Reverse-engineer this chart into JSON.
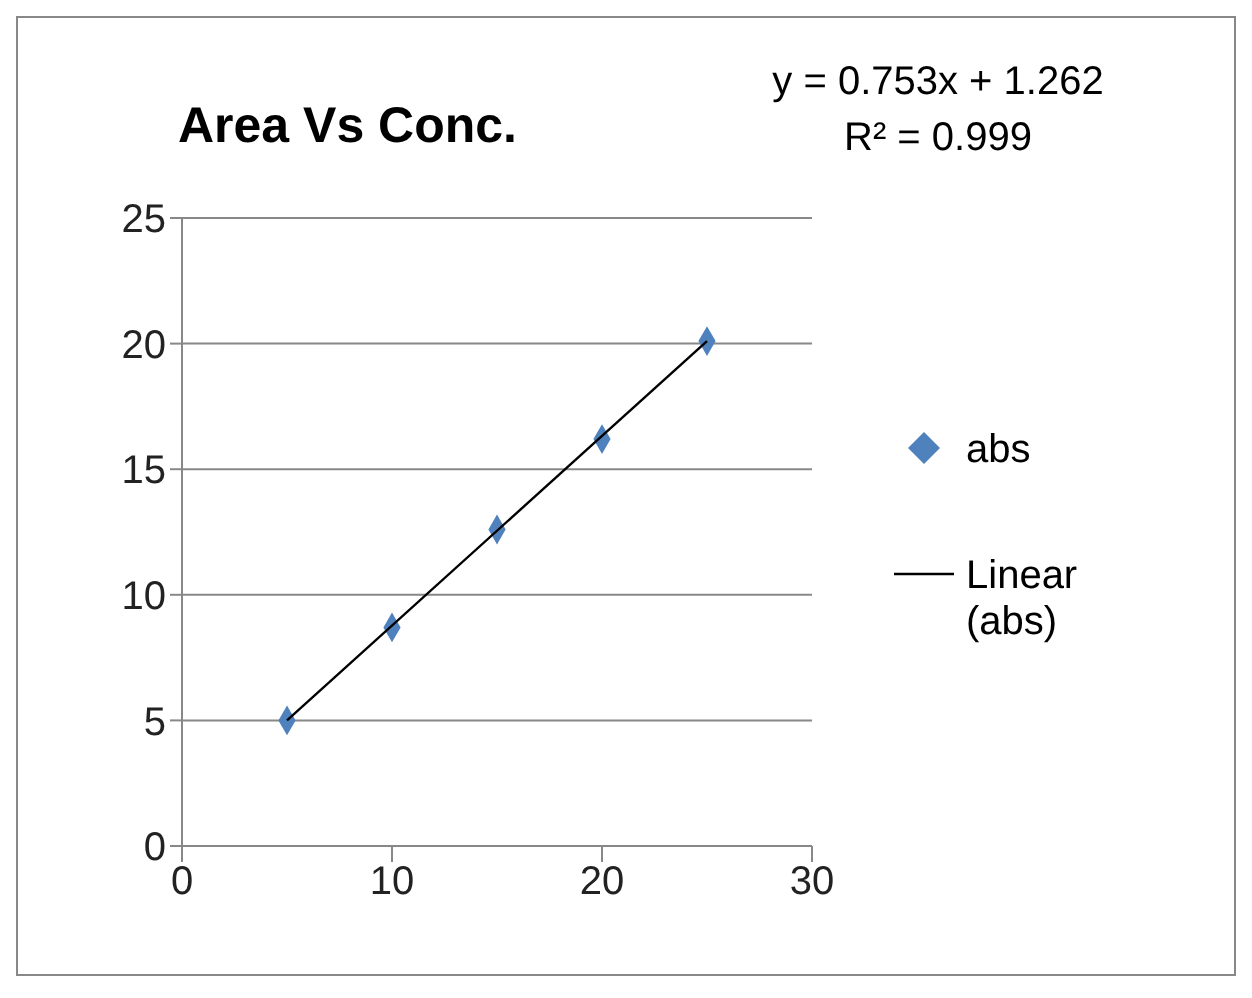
{
  "chart_data": {
    "type": "scatter",
    "title": "Area Vs  Conc.",
    "annotations": [
      "y = 0.753x + 1.262",
      "R² = 0.999"
    ],
    "x": [
      5,
      10,
      15,
      20,
      25
    ],
    "series": [
      {
        "name": "abs",
        "color": "#4f81bd",
        "values": [
          5.0,
          8.7,
          12.6,
          16.2,
          20.1
        ],
        "marker": "diamond"
      },
      {
        "name": "Linear (abs)",
        "type": "line",
        "color": "#000000",
        "x": [
          5,
          25
        ],
        "values": [
          5.0,
          20.1
        ]
      }
    ],
    "xlim": [
      0,
      30
    ],
    "xticks": [
      0,
      10,
      20,
      30
    ],
    "ylim": [
      0,
      25
    ],
    "yticks": [
      0,
      5,
      10,
      15,
      20,
      25
    ],
    "grid": "y",
    "legend": "right"
  }
}
